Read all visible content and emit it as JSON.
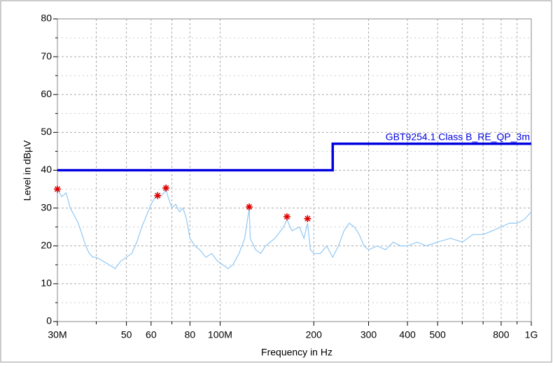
{
  "chart_data": {
    "type": "line",
    "xscale": "log",
    "grid": true,
    "xlabel": "Frequency in Hz",
    "ylabel": "Level in dBµV",
    "xlim": [
      30000000,
      1000000000
    ],
    "ylim": [
      0,
      80
    ],
    "xticks": [
      {
        "value": 30000000,
        "label": "30M"
      },
      {
        "value": 50000000,
        "label": "50"
      },
      {
        "value": 60000000,
        "label": "60"
      },
      {
        "value": 80000000,
        "label": "80"
      },
      {
        "value": 100000000,
        "label": "100M"
      },
      {
        "value": 200000000,
        "label": "200"
      },
      {
        "value": 300000000,
        "label": "300"
      },
      {
        "value": 400000000,
        "label": "400"
      },
      {
        "value": 500000000,
        "label": "500"
      },
      {
        "value": 800000000,
        "label": "800"
      },
      {
        "value": 1000000000,
        "label": "1G"
      }
    ],
    "xminor": [
      40000000,
      70000000,
      600000000,
      700000000,
      900000000
    ],
    "yticks": [
      0,
      10,
      20,
      30,
      40,
      50,
      60,
      70,
      80
    ],
    "yminor": [
      5,
      15,
      25,
      35,
      45,
      55,
      65,
      75
    ],
    "series": [
      {
        "style": "line",
        "color": "#99ccf5",
        "x": [
          30000000,
          31000000,
          32000000,
          33000000,
          34000000,
          35000000,
          36000000,
          37000000,
          38000000,
          39000000,
          40000000,
          42000000,
          44000000,
          46000000,
          48000000,
          50000000,
          52000000,
          54000000,
          56000000,
          58000000,
          60000000,
          62000000,
          64000000,
          66000000,
          67000000,
          68000000,
          70000000,
          72000000,
          74000000,
          76000000,
          78000000,
          80000000,
          83000000,
          86000000,
          90000000,
          94000000,
          98000000,
          102000000,
          106000000,
          110000000,
          115000000,
          120000000,
          124000000,
          125000000,
          130000000,
          135000000,
          140000000,
          150000000,
          160000000,
          164000000,
          170000000,
          180000000,
          186000000,
          191000000,
          195000000,
          200000000,
          210000000,
          220000000,
          230000000,
          240000000,
          250000000,
          260000000,
          270000000,
          280000000,
          290000000,
          300000000,
          320000000,
          340000000,
          360000000,
          380000000,
          400000000,
          430000000,
          460000000,
          500000000,
          550000000,
          600000000,
          650000000,
          700000000,
          750000000,
          800000000,
          850000000,
          900000000,
          950000000,
          1000000000
        ],
        "values": [
          35,
          33,
          34,
          30,
          28,
          26,
          23,
          20,
          18,
          17,
          17,
          16,
          15,
          14,
          16,
          17,
          18,
          21,
          25,
          28,
          31,
          33,
          33,
          34,
          35,
          33,
          30,
          31,
          29,
          30,
          27,
          22,
          20,
          19,
          17,
          18,
          16,
          15,
          14,
          15,
          18,
          22,
          30,
          22,
          19,
          18,
          20,
          22,
          25,
          27,
          24,
          25,
          22,
          26,
          19,
          18,
          18,
          20,
          17,
          20,
          24,
          26,
          25,
          23,
          20,
          19,
          20,
          19,
          21,
          20,
          20,
          21,
          20,
          21,
          22,
          21,
          23,
          23,
          24,
          25,
          26,
          26,
          27,
          29
        ]
      },
      {
        "style": "line",
        "color": "#0000e0",
        "name": "GBT9254.1 Class B_RE_QP_3m",
        "x": [
          30000000,
          230000000,
          230000000,
          1000000000
        ],
        "values": [
          40,
          40,
          47,
          47
        ]
      },
      {
        "style": "markers",
        "color": "#e00000",
        "x": [
          30000000,
          63000000,
          67000000,
          124000000,
          164000000,
          191000000
        ],
        "values": [
          35,
          33.3,
          35.3,
          30.3,
          27.7,
          27.2
        ]
      }
    ]
  }
}
